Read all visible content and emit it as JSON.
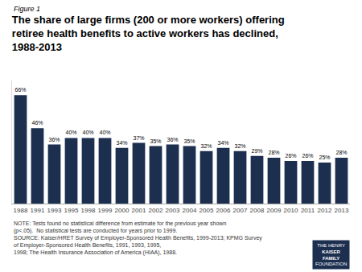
{
  "chart_data": {
    "type": "bar",
    "title": "The share of large firms (200 or more workers) offering\nretiree health benefits to active workers has declined,\n1988-2013",
    "categories": [
      "1988",
      "1991",
      "1993",
      "1995",
      "1998",
      "1999",
      "2000",
      "2001",
      "2002",
      "2003",
      "2004",
      "2005",
      "2006",
      "2007",
      "2008",
      "2009",
      "2010",
      "2011",
      "2012",
      "2013"
    ],
    "values": [
      66,
      46,
      36,
      40,
      40,
      40,
      34,
      37,
      35,
      36,
      35,
      32,
      34,
      32,
      29,
      28,
      26,
      26,
      25,
      28
    ],
    "value_labels": [
      "66%",
      "46%",
      "36%",
      "40%",
      "40%",
      "40%",
      "34%",
      "37%",
      "35%",
      "36%",
      "35%",
      "32%",
      "34%",
      "32%",
      "29%",
      "28%",
      "26%",
      "26%",
      "25%",
      "28%"
    ],
    "data_labels": true,
    "color": "#1c2f4f",
    "ylim": [
      0,
      75
    ],
    "grid": false,
    "tick_labels": "x",
    "annotations": [
      "Figure 1",
      "NOTE: Tests found no statistical difference from estimate for the previous year shown (p<.05).  No statistical tests are conducted for years prior to 1999.",
      "SOURCE: Kaiser/HRET Survey of Employer-Sponsored Health Benefits, 1999-2013; KPMG Survey of Employer-Sponsored Health Benefits, 1991, 1993, 1995,\n1998; The Health Insurance Association of America (HIAA), 1988.",
      "THE HENRY",
      "KAISER",
      "FAMILY",
      "FOUNDATION"
    ]
  }
}
